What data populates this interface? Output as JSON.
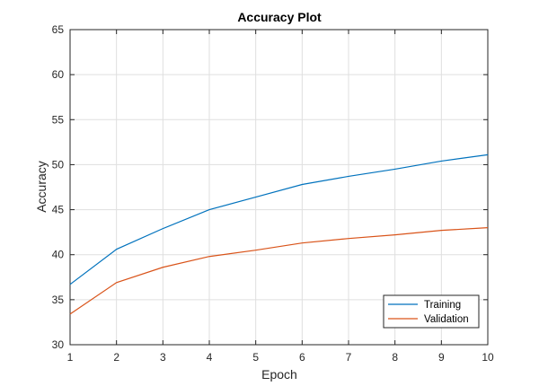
{
  "chart_data": {
    "type": "line",
    "title": "Accuracy Plot",
    "xlabel": "Epoch",
    "ylabel": "Accuracy",
    "xlim": [
      1,
      10
    ],
    "ylim": [
      30,
      65
    ],
    "x": [
      1,
      2,
      3,
      4,
      5,
      6,
      7,
      8,
      9,
      10
    ],
    "x_ticks": [
      "1",
      "2",
      "3",
      "4",
      "5",
      "6",
      "7",
      "8",
      "9",
      "10"
    ],
    "y_ticks": [
      "30",
      "35",
      "40",
      "45",
      "50",
      "55",
      "60",
      "65"
    ],
    "grid": true,
    "legend_position": "bottom-right",
    "series": [
      {
        "name": "Training",
        "color": "#0072bd",
        "values": [
          36.7,
          40.6,
          42.9,
          45.0,
          46.4,
          47.8,
          48.7,
          49.5,
          50.4,
          51.1
        ]
      },
      {
        "name": "Validation",
        "color": "#d95319",
        "values": [
          33.4,
          36.9,
          38.6,
          39.8,
          40.5,
          41.3,
          41.8,
          42.2,
          42.7,
          43.0
        ]
      }
    ]
  }
}
